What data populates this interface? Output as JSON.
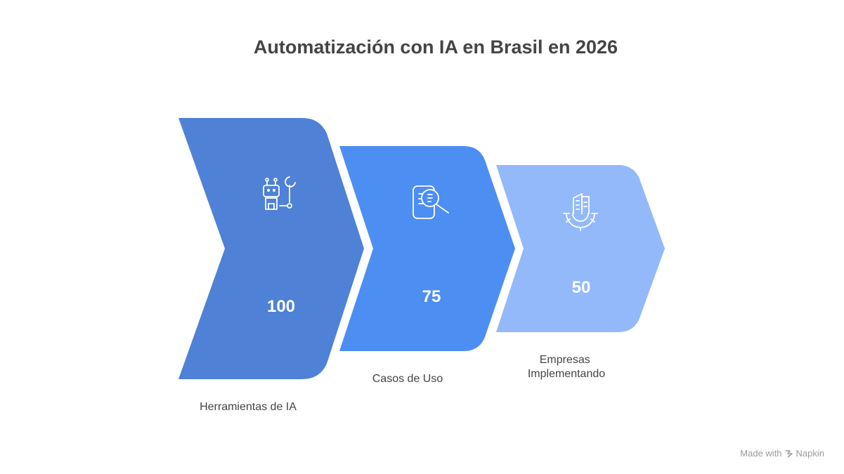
{
  "title": "Automatización con IA en Brasil en 2026",
  "stages": [
    {
      "label": "Herramientas de IA",
      "value": "100",
      "color": "#4f81d6",
      "icon": "robot-wrench-icon"
    },
    {
      "label": "Casos de Uso",
      "value": "75",
      "color": "#4c8ef2",
      "icon": "document-search-icon"
    },
    {
      "label": "Empresas Implementando",
      "value": "50",
      "color": "#93b9fb",
      "icon": "building-gear-icon"
    }
  ],
  "watermark": {
    "made_with": "Made with",
    "brand": "Napkin"
  }
}
